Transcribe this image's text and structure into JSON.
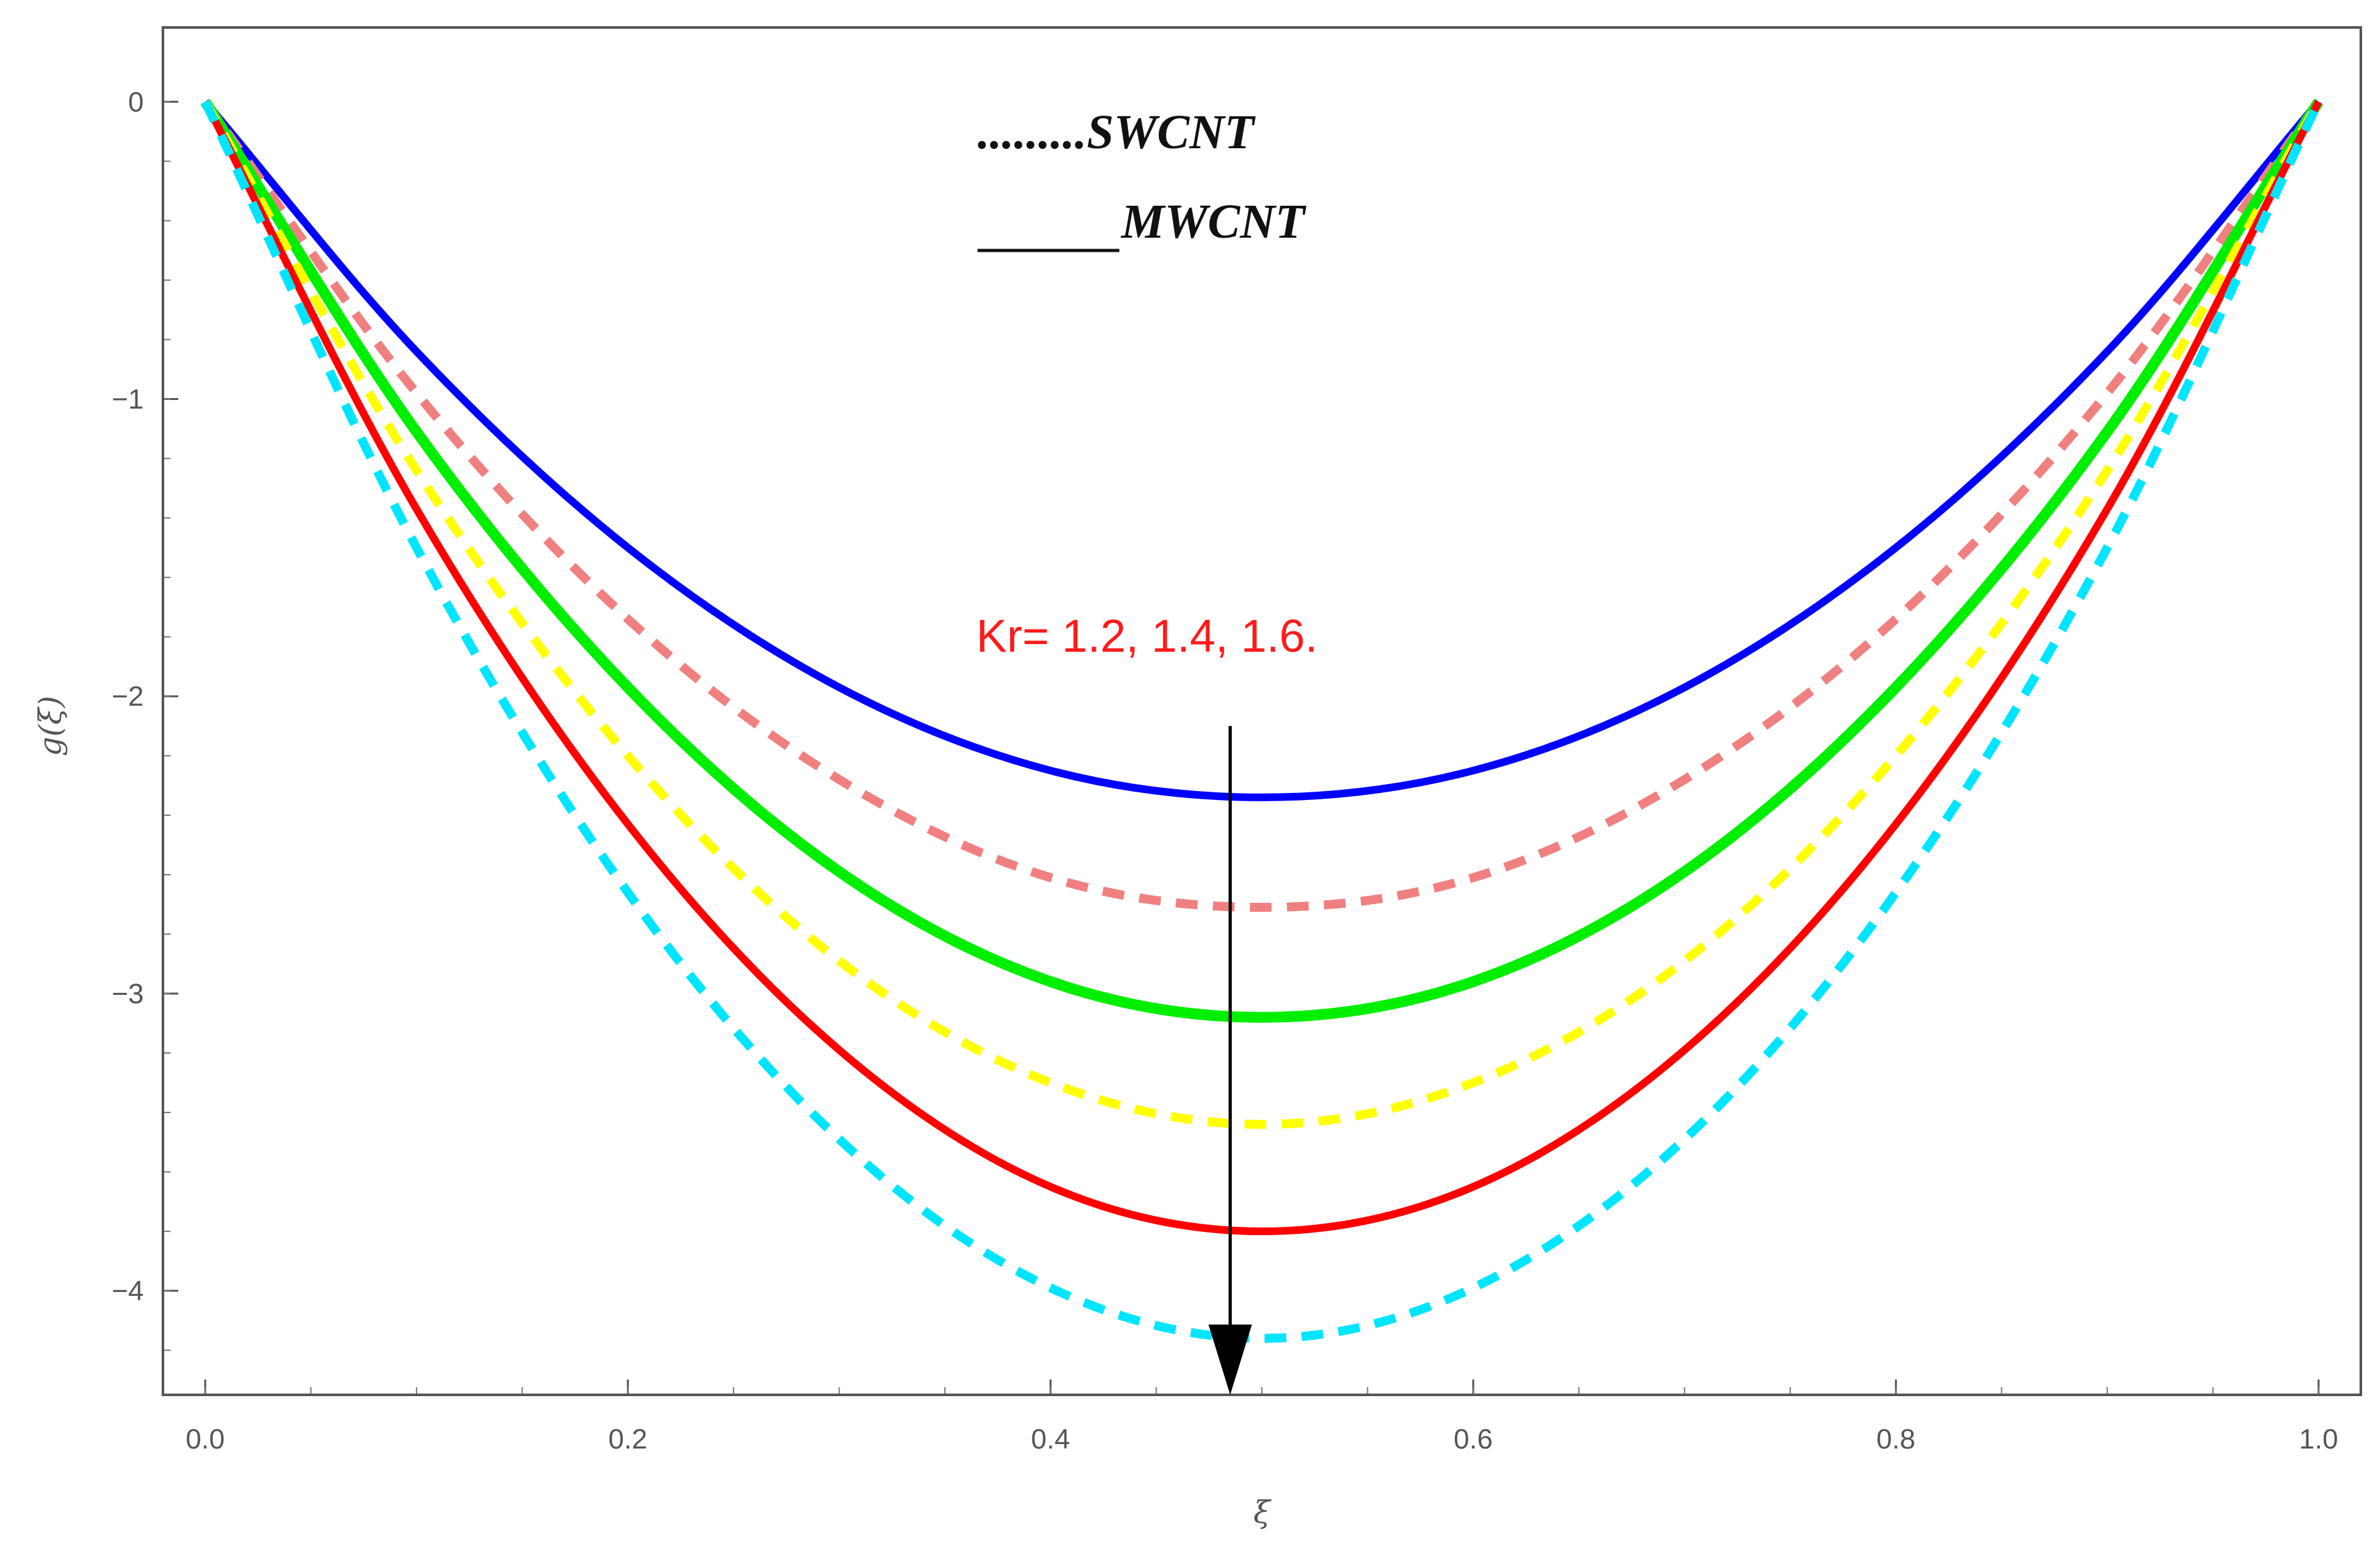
{
  "chart_data": {
    "type": "line",
    "title": "",
    "xlabel": "ξ",
    "ylabel": "g(ξ)",
    "xlim": [
      -0.02,
      1.02
    ],
    "ylim": [
      -4.35,
      0.25
    ],
    "xticks": [
      {
        "value": 0.0,
        "label": "0.0"
      },
      {
        "value": 0.2,
        "label": "0.2"
      },
      {
        "value": 0.4,
        "label": "0.4"
      },
      {
        "value": 0.6,
        "label": "0.6"
      },
      {
        "value": 0.8,
        "label": "0.8"
      },
      {
        "value": 1.0,
        "label": "1.0"
      }
    ],
    "yticks": [
      {
        "value": 0,
        "label": "0"
      },
      {
        "value": -1,
        "label": "-1"
      },
      {
        "value": -2,
        "label": "-2"
      },
      {
        "value": -3,
        "label": "-3"
      },
      {
        "value": -4,
        "label": "-4"
      }
    ],
    "x": [
      0.0,
      0.1,
      0.2,
      0.3,
      0.4,
      0.5,
      0.6,
      0.7,
      0.8,
      0.9,
      1.0
    ],
    "series": [
      {
        "name": "MWCNT Kr=1.2",
        "style": "solid",
        "color": "#0000ff",
        "values": [
          0,
          -0.84,
          -1.5,
          -1.97,
          -2.25,
          -2.34,
          -2.25,
          -1.97,
          -1.5,
          -0.84,
          0
        ]
      },
      {
        "name": "SWCNT Kr=1.2",
        "style": "dashed",
        "color": "#f08080",
        "values": [
          0,
          -0.98,
          -1.74,
          -2.28,
          -2.61,
          -2.71,
          -2.61,
          -2.28,
          -1.74,
          -0.98,
          0
        ]
      },
      {
        "name": "MWCNT Kr=1.4",
        "style": "solid",
        "color": "#00ee00",
        "values": [
          0,
          -1.11,
          -1.97,
          -2.59,
          -2.96,
          -3.08,
          -2.96,
          -2.59,
          -1.97,
          -1.11,
          0
        ]
      },
      {
        "name": "SWCNT Kr=1.4",
        "style": "dashed",
        "color": "#ffff00",
        "values": [
          0,
          -1.24,
          -2.2,
          -2.89,
          -3.3,
          -3.44,
          -3.3,
          -2.89,
          -2.2,
          -1.24,
          0
        ]
      },
      {
        "name": "MWCNT Kr=1.6",
        "style": "solid",
        "color": "#ff0000",
        "values": [
          0,
          -1.37,
          -2.43,
          -3.19,
          -3.65,
          -3.8,
          -3.65,
          -3.19,
          -2.43,
          -1.37,
          0
        ]
      },
      {
        "name": "SWCNT Kr=1.6",
        "style": "dashed",
        "color": "#00e5ff",
        "values": [
          0,
          -1.5,
          -2.66,
          -3.49,
          -3.99,
          -4.16,
          -3.99,
          -3.49,
          -2.66,
          -1.5,
          0
        ]
      }
    ],
    "legend": [
      {
        "marker": ".........",
        "label": "SWCNT",
        "style": "dotted"
      },
      {
        "marker": "______",
        "label": "MWCNT",
        "style": "solid"
      }
    ],
    "legend_position": "top-center",
    "annotation": {
      "text": "Kr= 1.2, 1.4, 1.6.",
      "color": "#ff1a1a",
      "arrow_x": 0.485,
      "arrow_from_y": -2.1,
      "arrow_to_y": -4.35
    },
    "grid": false
  }
}
